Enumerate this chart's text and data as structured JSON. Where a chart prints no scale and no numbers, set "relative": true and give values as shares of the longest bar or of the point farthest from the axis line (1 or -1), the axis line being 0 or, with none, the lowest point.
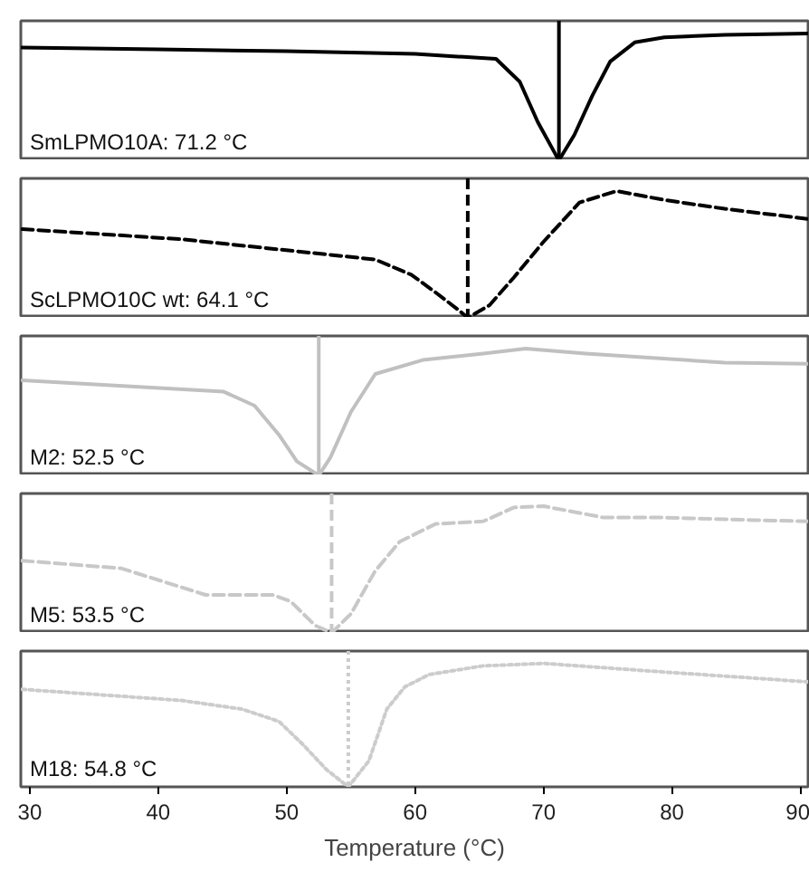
{
  "chart_data": [
    {
      "type": "line",
      "relative": true,
      "tick_labels": false,
      "xlim": [
        29.3,
        90.6
      ],
      "xticks": [
        30,
        40,
        50,
        60,
        70,
        80,
        90
      ],
      "color": "#000000",
      "line_style": "solid",
      "x": [
        29.4,
        40,
        50,
        60,
        63,
        66.3,
        68.15,
        69.56,
        70.97,
        71.2,
        72.4,
        73.8,
        75.2,
        77.1,
        79.4,
        84.1,
        90.6
      ],
      "values": [
        0.89,
        0.875,
        0.86,
        0.84,
        0.82,
        0.8,
        0.62,
        0.3,
        0.04,
        0,
        0.2,
        0.51,
        0.78,
        0.93,
        0.97,
        0.99,
        1.0
      ],
      "ref_lines": [
        {
          "axis": "x",
          "value": 71.2,
          "color": "#000000",
          "line_style": "solid"
        }
      ],
      "annotations": [
        "SmLPMO10A: 71.2 °C"
      ]
    },
    {
      "type": "line",
      "relative": true,
      "tick_labels": false,
      "xlim": [
        29.3,
        90.6
      ],
      "xticks": [
        30,
        40,
        50,
        60,
        70,
        80,
        90
      ],
      "color": "#000000",
      "line_style": "dashed",
      "x": [
        29.4,
        41.8,
        50.3,
        56.9,
        59.7,
        61.6,
        63.4,
        64.1,
        65.8,
        67.7,
        70.0,
        72.8,
        75.7,
        79.4,
        84.1,
        90.6
      ],
      "values": [
        0.7,
        0.62,
        0.53,
        0.46,
        0.34,
        0.2,
        0.06,
        0,
        0.1,
        0.32,
        0.6,
        0.91,
        1.0,
        0.93,
        0.86,
        0.78
      ],
      "ref_lines": [
        {
          "axis": "x",
          "value": 64.1,
          "color": "#000000",
          "line_style": "dashed"
        }
      ],
      "annotations": [
        "ScLPMO10C wt: 64.1 °C"
      ]
    },
    {
      "type": "line",
      "relative": true,
      "tick_labels": false,
      "xlim": [
        29.3,
        90.6
      ],
      "xticks": [
        30,
        40,
        50,
        60,
        70,
        80,
        90
      ],
      "color": "#c0c0c0",
      "line_style": "solid",
      "x": [
        29.4,
        45.1,
        47.5,
        49.4,
        50.8,
        52.5,
        53.4,
        55.0,
        56.9,
        60.6,
        65.3,
        68.6,
        73.3,
        84.1,
        90.6
      ],
      "values": [
        0.75,
        0.66,
        0.55,
        0.32,
        0.11,
        0,
        0.14,
        0.5,
        0.8,
        0.91,
        0.96,
        1.0,
        0.96,
        0.89,
        0.88
      ],
      "ref_lines": [
        {
          "axis": "x",
          "value": 52.5,
          "color": "#c0c0c0",
          "line_style": "solid"
        }
      ],
      "annotations": [
        "M2: 52.5 °C"
      ]
    },
    {
      "type": "line",
      "relative": true,
      "tick_labels": false,
      "xlim": [
        29.3,
        90.6
      ],
      "xticks": [
        30,
        40,
        50,
        60,
        70,
        80,
        90
      ],
      "color": "#c8c8c8",
      "line_style": "dashed",
      "x": [
        29.4,
        37.1,
        43.7,
        48.9,
        50.3,
        52.2,
        53.5,
        55.0,
        56.9,
        58.8,
        61.6,
        65.3,
        67.7,
        70.0,
        74.7,
        79.4,
        86.5,
        90.6
      ],
      "values": [
        0.57,
        0.51,
        0.3,
        0.3,
        0.25,
        0.06,
        0,
        0.15,
        0.49,
        0.72,
        0.86,
        0.88,
        0.99,
        1.0,
        0.91,
        0.91,
        0.89,
        0.88
      ],
      "ref_lines": [
        {
          "axis": "x",
          "value": 53.5,
          "color": "#c8c8c8",
          "line_style": "dashed"
        }
      ],
      "annotations": [
        "M5: 53.5 °C"
      ]
    },
    {
      "type": "line",
      "relative": true,
      "tick_labels": "x",
      "xlim": [
        29.3,
        90.6
      ],
      "xticks": [
        30,
        40,
        50,
        60,
        70,
        80,
        90
      ],
      "color": "#cccccc",
      "line_style": "dotted",
      "xlabel": "Temperature (°C)",
      "x": [
        29.4,
        41.8,
        46.5,
        49.4,
        51.2,
        53.1,
        54.8,
        56.4,
        57.8,
        59.2,
        61.1,
        65.3,
        70.0,
        79.4,
        86.5,
        90.6
      ],
      "values": [
        0.79,
        0.7,
        0.63,
        0.53,
        0.35,
        0.14,
        0,
        0.21,
        0.63,
        0.81,
        0.91,
        0.98,
        1.0,
        0.93,
        0.88,
        0.85
      ],
      "ref_lines": [
        {
          "axis": "x",
          "value": 54.8,
          "color": "#cccccc",
          "line_style": "dotted"
        }
      ],
      "annotations": [
        "M18: 54.8 °C"
      ]
    }
  ]
}
